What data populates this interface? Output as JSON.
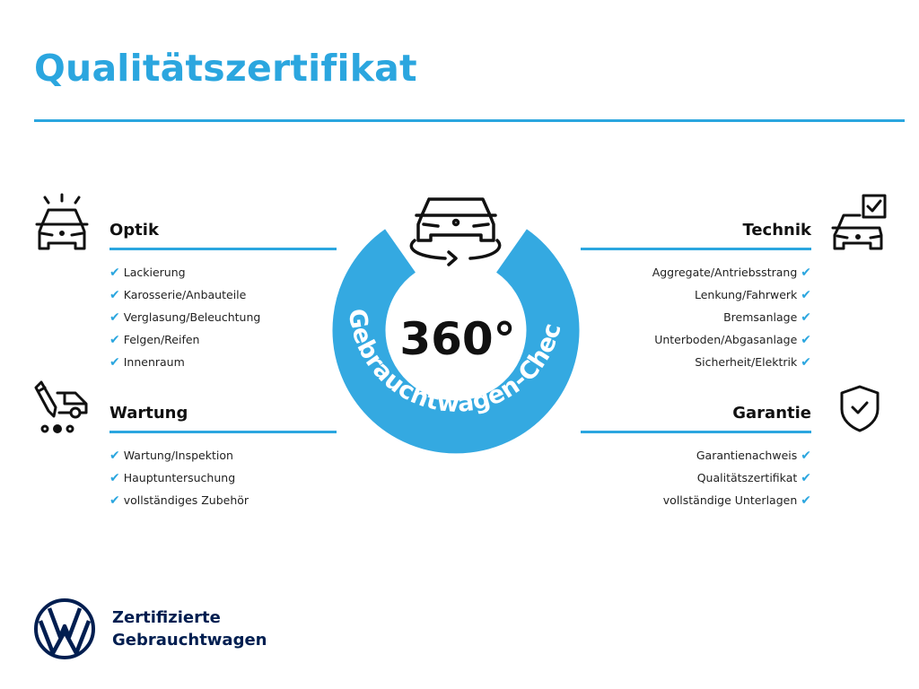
{
  "title": "Qualitätszertifikat",
  "colors": {
    "accent": "#2ba6df",
    "brand_navy": "#001e50",
    "text": "#111111"
  },
  "center_badge": {
    "value": "360°",
    "ring_text": "Gebrauchtwagen-Check",
    "icon": "car-rotate-icon"
  },
  "sections": {
    "optik": {
      "heading": "Optik",
      "icon": "car-lights-icon",
      "items": [
        "Lackierung",
        "Karosserie/Anbauteile",
        "Verglasung/Beleuchtung",
        "Felgen/Reifen",
        "Innenraum"
      ]
    },
    "wartung": {
      "heading": "Wartung",
      "icon": "service-tool-car-icon",
      "items": [
        "Wartung/Inspektion",
        "Hauptuntersuchung",
        "vollständiges Zubehör"
      ]
    },
    "technik": {
      "heading": "Technik",
      "icon": "car-checkbox-icon",
      "items": [
        "Aggregate/Antriebsstrang",
        "Lenkung/Fahrwerk",
        "Bremsanlage",
        "Unterboden/Abgasanlage",
        "Sicherheit/Elektrik"
      ]
    },
    "garantie": {
      "heading": "Garantie",
      "icon": "shield-check-icon",
      "items": [
        "Garantienachweis",
        "Qualitätszertifikat",
        "vollständige Unterlagen"
      ]
    }
  },
  "check_mark": "✔",
  "footer": {
    "logo": "VW",
    "line1": "Zertifizierte",
    "line2": "Gebrauchtwagen"
  }
}
